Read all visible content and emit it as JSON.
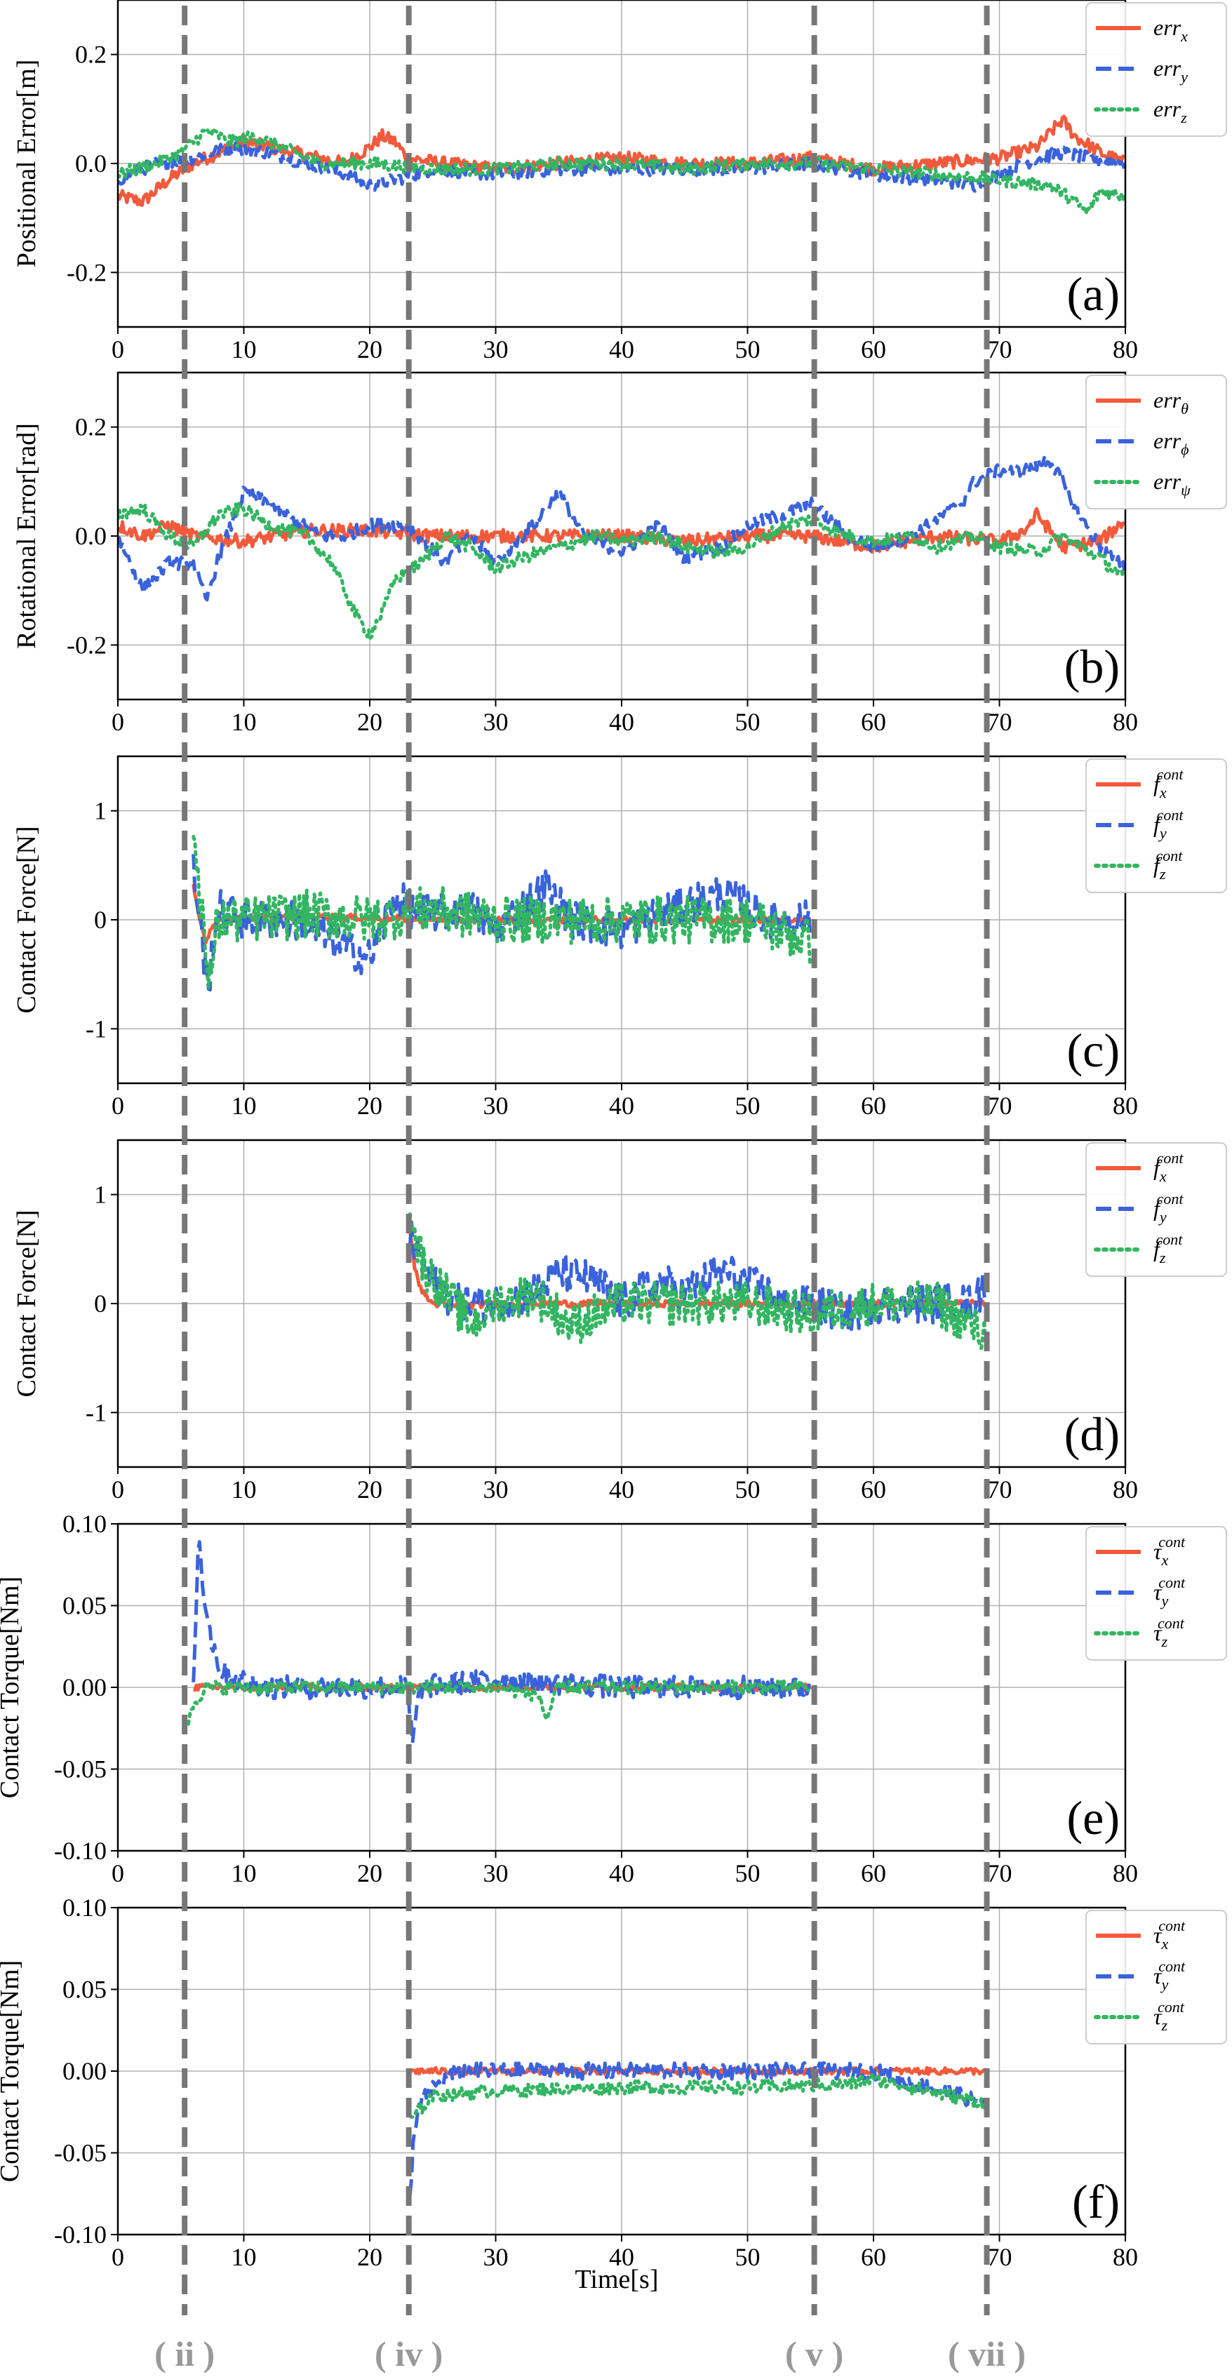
{
  "figure": {
    "xlabel": "Time[s]",
    "phase_labels": [
      {
        "label": "( ii )",
        "t": 5.3
      },
      {
        "label": "( iv )",
        "t": 23.1
      },
      {
        "label": "( v )",
        "t": 55.3
      },
      {
        "label": "( vii )",
        "t": 69.0
      }
    ],
    "colors": {
      "red": "#f25a3c",
      "blue": "#3a63db",
      "green": "#33b562",
      "phase": "#777777"
    }
  },
  "chart_data": [
    {
      "type": "line",
      "panel": "(a)",
      "ylabel": "Positional Error[m]",
      "xlim": [
        0,
        80
      ],
      "ylim": [
        -0.3,
        0.3
      ],
      "xticks": [
        "0",
        "10",
        "20",
        "30",
        "40",
        "50",
        "60",
        "70",
        "80"
      ],
      "yticks": [
        "0.2",
        "0.0",
        "-0.2"
      ],
      "ytick_values": [
        0.2,
        0.0,
        -0.2
      ],
      "legend": [
        "err_x",
        "err_y",
        "err_z"
      ],
      "series": [
        {
          "name": "err_x",
          "style": "solid",
          "t_start": 0,
          "t_end": 80,
          "x": [
            0,
            2,
            4,
            6,
            8,
            10,
            12,
            14,
            16,
            18,
            20,
            21,
            22,
            23,
            26,
            30,
            35,
            40,
            45,
            50,
            55,
            60,
            65,
            70,
            73,
            75,
            76,
            78,
            80
          ],
          "values": [
            -0.06,
            -0.07,
            -0.03,
            0.0,
            0.02,
            0.04,
            0.03,
            0.02,
            0.01,
            0.0,
            0.03,
            0.05,
            0.04,
            0.01,
            0.0,
            -0.01,
            0.0,
            0.01,
            0.0,
            0.0,
            0.01,
            -0.01,
            0.0,
            0.01,
            0.03,
            0.08,
            0.05,
            0.02,
            0.0
          ],
          "noise": 0.012
        },
        {
          "name": "err_y",
          "style": "dashed",
          "t_start": 0,
          "t_end": 80,
          "x": [
            0,
            3,
            6,
            9,
            12,
            15,
            18,
            20,
            22,
            25,
            30,
            35,
            40,
            45,
            50,
            55,
            60,
            65,
            68,
            70,
            73,
            75,
            77,
            80
          ],
          "values": [
            -0.03,
            0.0,
            0.01,
            0.03,
            0.02,
            0.0,
            -0.02,
            -0.04,
            -0.03,
            -0.01,
            -0.02,
            -0.01,
            -0.01,
            -0.01,
            -0.01,
            0.0,
            -0.02,
            -0.03,
            -0.04,
            -0.02,
            0.01,
            0.02,
            0.01,
            0.0
          ],
          "noise": 0.012
        },
        {
          "name": "err_z",
          "style": "dotted",
          "t_start": 0,
          "t_end": 80,
          "x": [
            0,
            3,
            5,
            7,
            9,
            11,
            13,
            16,
            20,
            25,
            30,
            35,
            40,
            45,
            50,
            55,
            60,
            65,
            70,
            74,
            76,
            77,
            78,
            80
          ],
          "values": [
            -0.02,
            0.0,
            0.02,
            0.06,
            0.04,
            0.05,
            0.03,
            0.0,
            0.0,
            -0.01,
            -0.01,
            0.0,
            0.0,
            -0.01,
            0.0,
            0.0,
            -0.01,
            -0.02,
            -0.03,
            -0.04,
            -0.07,
            -0.09,
            -0.05,
            -0.06
          ],
          "noise": 0.012
        }
      ]
    },
    {
      "type": "line",
      "panel": "(b)",
      "ylabel": "Rotational Error[rad]",
      "xlim": [
        0,
        80
      ],
      "ylim": [
        -0.3,
        0.3
      ],
      "xticks": [
        "0",
        "10",
        "20",
        "30",
        "40",
        "50",
        "60",
        "70",
        "80"
      ],
      "yticks": [
        "0.2",
        "0.0",
        "-0.2"
      ],
      "ytick_values": [
        0.2,
        0.0,
        -0.2
      ],
      "legend": [
        "err_θ",
        "err_ϕ",
        "err_ψ"
      ],
      "series": [
        {
          "name": "err_θ",
          "style": "solid",
          "t_start": 0,
          "t_end": 80,
          "x": [
            0,
            2,
            4,
            6,
            10,
            15,
            20,
            25,
            30,
            35,
            40,
            45,
            50,
            55,
            60,
            65,
            70,
            72,
            73,
            75,
            78,
            80
          ],
          "values": [
            0.02,
            0.0,
            0.02,
            0.0,
            -0.01,
            0.01,
            0.01,
            0.0,
            0.0,
            0.0,
            0.0,
            -0.01,
            0.0,
            0.0,
            -0.02,
            0.0,
            -0.01,
            0.01,
            0.04,
            -0.02,
            -0.01,
            0.03
          ],
          "noise": 0.012
        },
        {
          "name": "err_ϕ",
          "style": "dashed",
          "t_start": 0,
          "t_end": 80,
          "x": [
            0,
            1,
            2,
            4,
            6,
            7,
            8,
            10,
            12,
            14,
            16,
            18,
            20,
            23,
            26,
            28,
            30,
            33,
            35,
            37,
            40,
            43,
            45,
            48,
            50,
            53,
            55,
            58,
            60,
            63,
            65,
            67,
            68,
            70,
            72,
            74,
            75,
            76,
            78,
            80
          ],
          "values": [
            0.0,
            -0.05,
            -0.1,
            -0.05,
            -0.05,
            -0.12,
            -0.04,
            0.08,
            0.06,
            0.03,
            0.0,
            0.0,
            0.02,
            0.02,
            -0.05,
            0.0,
            -0.05,
            0.02,
            0.08,
            0.0,
            -0.03,
            0.02,
            -0.04,
            -0.02,
            0.02,
            0.04,
            0.06,
            0.0,
            -0.02,
            0.0,
            0.03,
            0.06,
            0.1,
            0.12,
            0.12,
            0.14,
            0.1,
            0.05,
            -0.02,
            -0.06
          ],
          "noise": 0.012
        },
        {
          "name": "err_ψ",
          "style": "dotted",
          "t_start": 0,
          "t_end": 80,
          "x": [
            0,
            2,
            4,
            6,
            8,
            10,
            12,
            15,
            17,
            19,
            20,
            21,
            22,
            24,
            26,
            28,
            30,
            32,
            35,
            38,
            40,
            43,
            45,
            48,
            50,
            53,
            55,
            58,
            60,
            63,
            65,
            68,
            70,
            73,
            75,
            78,
            80
          ],
          "values": [
            0.04,
            0.05,
            0.0,
            -0.02,
            0.04,
            0.05,
            0.02,
            0.0,
            -0.05,
            -0.15,
            -0.18,
            -0.14,
            -0.08,
            -0.05,
            0.0,
            -0.02,
            -0.06,
            -0.04,
            -0.02,
            0.0,
            -0.01,
            0.0,
            -0.02,
            -0.03,
            -0.02,
            0.02,
            0.03,
            0.0,
            -0.01,
            0.0,
            -0.02,
            0.0,
            -0.02,
            -0.03,
            0.0,
            -0.04,
            -0.08
          ],
          "noise": 0.012
        }
      ]
    },
    {
      "type": "line",
      "panel": "(c)",
      "ylabel": "Contact Force[N]",
      "xlim": [
        0,
        80
      ],
      "ylim": [
        -1.5,
        1.5
      ],
      "xticks": [
        "0",
        "10",
        "20",
        "30",
        "40",
        "50",
        "60",
        "70",
        "80"
      ],
      "yticks": [
        "1",
        "0",
        "-1"
      ],
      "ytick_values": [
        1,
        0,
        -1
      ],
      "legend": [
        "f_x^cont",
        "f_y^cont",
        "f_z^cont"
      ],
      "series": [
        {
          "name": "f_x^cont",
          "style": "solid",
          "t_start": 6,
          "t_end": 55,
          "x": [
            6,
            6.5,
            7,
            7.5,
            8,
            10,
            15,
            20,
            25,
            30,
            35,
            40,
            45,
            50,
            55
          ],
          "values": [
            0.3,
            0.0,
            -0.2,
            -0.05,
            0.0,
            0.02,
            0.03,
            0.02,
            0.0,
            0.0,
            0.0,
            0.0,
            0.0,
            0.0,
            0.0
          ],
          "noise": 0.03
        },
        {
          "name": "f_y^cont",
          "style": "dashed",
          "t_start": 6,
          "t_end": 55,
          "x": [
            6,
            6.3,
            6.8,
            7.2,
            7.5,
            8,
            10,
            14,
            18,
            20,
            22,
            24,
            28,
            30,
            34,
            36,
            40,
            44,
            48,
            52,
            55
          ],
          "values": [
            0.45,
            0.2,
            -0.3,
            -0.7,
            -0.2,
            0.1,
            0.0,
            0.0,
            -0.25,
            -0.35,
            0.2,
            0.05,
            0.1,
            -0.1,
            0.3,
            0.0,
            -0.1,
            0.1,
            0.25,
            0.0,
            0.0
          ],
          "noise": 0.18
        },
        {
          "name": "f_z^cont",
          "style": "dotted",
          "t_start": 6,
          "t_end": 55,
          "x": [
            6,
            6.3,
            6.8,
            7.2,
            7.5,
            8,
            10,
            15,
            20,
            25,
            30,
            35,
            40,
            45,
            50,
            55
          ],
          "values": [
            0.75,
            0.5,
            0.0,
            -0.75,
            -0.3,
            0.0,
            0.0,
            0.05,
            0.0,
            0.1,
            0.0,
            0.0,
            0.0,
            0.0,
            0.0,
            -0.2
          ],
          "noise": 0.22
        }
      ]
    },
    {
      "type": "line",
      "panel": "(d)",
      "ylabel": "Contact Force[N]",
      "xlim": [
        0,
        80
      ],
      "ylim": [
        -1.5,
        1.5
      ],
      "xticks": [
        "0",
        "10",
        "20",
        "30",
        "40",
        "50",
        "60",
        "70",
        "80"
      ],
      "yticks": [
        "1",
        "0",
        "-1"
      ],
      "ytick_values": [
        1,
        0,
        -1
      ],
      "legend": [
        "f_x^cont",
        "f_y^cont",
        "f_z^cont"
      ],
      "series": [
        {
          "name": "f_x^cont",
          "style": "solid",
          "t_start": 23.2,
          "t_end": 69,
          "x": [
            23.2,
            23.6,
            24.2,
            25,
            27,
            30,
            40,
            50,
            60,
            69
          ],
          "values": [
            0.7,
            0.3,
            0.1,
            0.0,
            -0.02,
            0.0,
            0.0,
            0.0,
            0.0,
            0.0
          ],
          "noise": 0.03
        },
        {
          "name": "f_y^cont",
          "style": "dashed",
          "t_start": 23.2,
          "t_end": 69,
          "x": [
            23.2,
            24,
            25,
            27,
            30,
            33,
            35,
            38,
            40,
            43,
            45,
            48,
            50,
            53,
            55,
            58,
            60,
            63,
            65,
            68,
            69
          ],
          "values": [
            0.6,
            0.4,
            0.2,
            0.0,
            0.0,
            0.1,
            0.3,
            0.2,
            0.0,
            0.2,
            0.1,
            0.3,
            0.2,
            0.0,
            0.0,
            -0.1,
            0.0,
            0.0,
            0.0,
            0.0,
            0.2
          ],
          "noise": 0.18
        },
        {
          "name": "f_z^cont",
          "style": "dotted",
          "t_start": 23.2,
          "t_end": 69,
          "x": [
            23.2,
            23.6,
            24.5,
            26,
            28,
            30,
            33,
            36,
            40,
            45,
            50,
            55,
            60,
            65,
            69
          ],
          "values": [
            0.9,
            0.6,
            0.3,
            0.1,
            -0.2,
            0.0,
            0.1,
            -0.2,
            0.0,
            0.0,
            0.0,
            -0.1,
            0.0,
            0.0,
            -0.3
          ],
          "noise": 0.2
        }
      ]
    },
    {
      "type": "line",
      "panel": "(e)",
      "ylabel": "Contact Torque[Nm]",
      "xlim": [
        0,
        80
      ],
      "ylim": [
        -0.1,
        0.1
      ],
      "xticks": [
        "0",
        "10",
        "20",
        "30",
        "40",
        "50",
        "60",
        "70",
        "80"
      ],
      "yticks": [
        "0.10",
        "0.05",
        "0.00",
        "-0.05",
        "-0.10"
      ],
      "ytick_values": [
        0.1,
        0.05,
        0.0,
        -0.05,
        -0.1
      ],
      "legend": [
        "τ_x^cont",
        "τ_y^cont",
        "τ_z^cont"
      ],
      "series": [
        {
          "name": "τ_x^cont",
          "style": "solid",
          "t_start": 6,
          "t_end": 55,
          "x": [
            6,
            10,
            20,
            30,
            40,
            50,
            55
          ],
          "values": [
            0.0,
            0.0,
            0.0,
            0.0,
            0.0,
            0.0,
            0.0
          ],
          "noise": 0.002
        },
        {
          "name": "τ_y^cont",
          "style": "dashed",
          "t_start": 6,
          "t_end": 55,
          "x": [
            6,
            6.4,
            6.8,
            7.4,
            8.2,
            9.5,
            12,
            20,
            23,
            23.4,
            24,
            30,
            40,
            50,
            55
          ],
          "values": [
            0.0,
            0.095,
            0.06,
            0.03,
            0.01,
            0.005,
            0.0,
            0.0,
            0.0,
            -0.035,
            0.0,
            0.005,
            0.0,
            0.0,
            0.0
          ],
          "noise": 0.007
        },
        {
          "name": "τ_z^cont",
          "style": "dotted",
          "t_start": 5.6,
          "t_end": 55,
          "x": [
            5.6,
            6,
            7,
            10,
            20,
            30,
            33.5,
            34,
            35,
            40,
            50,
            55
          ],
          "values": [
            -0.02,
            -0.01,
            0.0,
            0.0,
            0.0,
            0.0,
            -0.005,
            -0.02,
            0.0,
            0.0,
            0.0,
            0.0
          ],
          "noise": 0.004
        }
      ]
    },
    {
      "type": "line",
      "panel": "(f)",
      "ylabel": "Contact Torque[Nm]",
      "xlim": [
        0,
        80
      ],
      "ylim": [
        -0.1,
        0.1
      ],
      "xticks": [
        "0",
        "10",
        "20",
        "30",
        "40",
        "50",
        "60",
        "70",
        "80"
      ],
      "yticks": [
        "0.10",
        "0.05",
        "0.00",
        "-0.05",
        "-0.10"
      ],
      "ytick_values": [
        0.1,
        0.05,
        0.0,
        -0.05,
        -0.1
      ],
      "legend": [
        "τ_x^cont",
        "τ_y^cont",
        "τ_z^cont"
      ],
      "series": [
        {
          "name": "τ_x^cont",
          "style": "solid",
          "t_start": 23.2,
          "t_end": 69,
          "x": [
            23.2,
            30,
            40,
            50,
            60,
            69
          ],
          "values": [
            0.0,
            0.0,
            0.0,
            0.0,
            0.0,
            0.0
          ],
          "noise": 0.002
        },
        {
          "name": "τ_y^cont",
          "style": "dashed",
          "t_start": 23.2,
          "t_end": 69,
          "x": [
            23.2,
            23.5,
            24,
            25,
            27,
            30,
            40,
            50,
            60,
            69
          ],
          "values": [
            -0.08,
            -0.04,
            -0.02,
            -0.01,
            0.0,
            0.0,
            0.0,
            0.0,
            0.0,
            -0.02
          ],
          "noise": 0.005
        },
        {
          "name": "τ_z^cont",
          "style": "dotted",
          "t_start": 23.2,
          "t_end": 69,
          "x": [
            23.2,
            25,
            30,
            40,
            50,
            58,
            60,
            69
          ],
          "values": [
            -0.03,
            -0.015,
            -0.012,
            -0.01,
            -0.01,
            -0.008,
            -0.005,
            -0.02
          ],
          "noise": 0.004
        }
      ]
    }
  ]
}
